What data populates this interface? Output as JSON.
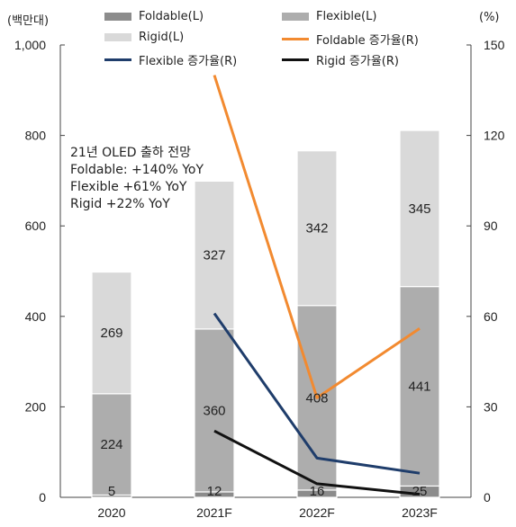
{
  "chart_data": {
    "type": "bar",
    "categories": [
      "2020",
      "2021F",
      "2022F",
      "2023F"
    ],
    "left_axis": {
      "unit": "(백만대)",
      "ylim": [
        0,
        1000
      ],
      "ticks": [
        0,
        200,
        400,
        600,
        800,
        1000
      ],
      "tick_labels": [
        "0",
        "200",
        "400",
        "600",
        "800",
        "1,000"
      ]
    },
    "right_axis": {
      "unit": "(%)",
      "ylim": [
        0,
        150
      ],
      "ticks": [
        0,
        30,
        60,
        90,
        120,
        150
      ],
      "tick_labels": [
        "0",
        "30",
        "60",
        "90",
        "120",
        "150"
      ]
    },
    "bar_series": [
      {
        "name": "Foldable(L)",
        "color": "#8c8c8c",
        "values": [
          5,
          12,
          16,
          25
        ],
        "labels": [
          "5",
          "12",
          "16",
          "25"
        ]
      },
      {
        "name": "Flexible(L)",
        "color": "#adadad",
        "values": [
          224,
          360,
          408,
          441
        ],
        "labels": [
          "224",
          "360",
          "408",
          "441"
        ]
      },
      {
        "name": "Rigid(L)",
        "color": "#d9d9d9",
        "values": [
          269,
          327,
          342,
          345
        ],
        "labels": [
          "269",
          "327",
          "342",
          "345"
        ]
      }
    ],
    "line_series": [
      {
        "name": "Foldable 증가율(R)",
        "color": "#f28a30",
        "values": [
          null,
          140,
          33,
          56
        ]
      },
      {
        "name": "Flexible 증가율(R)",
        "color": "#1f3d6b",
        "values": [
          null,
          61,
          13,
          8
        ]
      },
      {
        "name": "Rigid 증가율(R)",
        "color": "#111111",
        "values": [
          null,
          22,
          4.5,
          1
        ]
      }
    ],
    "annotation": [
      "21년 OLED 출하 전망",
      "Foldable: +140% YoY",
      "Flexible +61% YoY",
      "Rigid +22% YoY"
    ],
    "legend_placement": "top",
    "grid": false
  }
}
